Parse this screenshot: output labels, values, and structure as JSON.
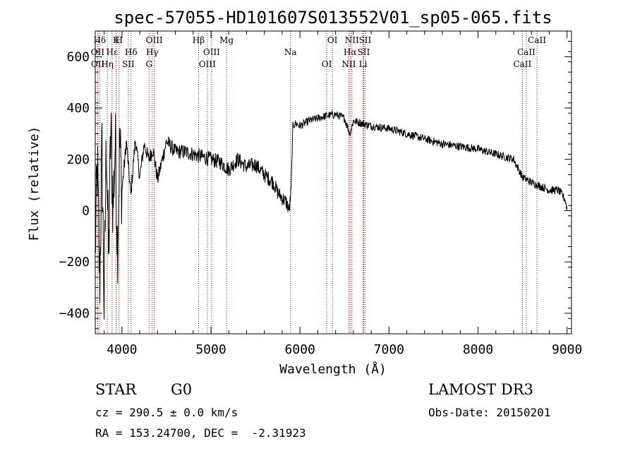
{
  "chart_data": {
    "type": "line",
    "title": "spec-57055-HD101607S013552V01_sp05-065.fits",
    "xlabel": "Wavelength (Å)",
    "ylabel": "Flux (relative)",
    "xlim": [
      3700,
      9050
    ],
    "ylim": [
      -480,
      700
    ],
    "x_ticks": [
      4000,
      5000,
      6000,
      7000,
      8000,
      9000
    ],
    "y_ticks": [
      -400,
      -200,
      0,
      200,
      400,
      600
    ],
    "series": [
      {
        "name": "flux",
        "x": [
          3700,
          3725,
          3750,
          3775,
          3800,
          3825,
          3850,
          3875,
          3900,
          3925,
          3950,
          3975,
          4000,
          4050,
          4100,
          4150,
          4200,
          4250,
          4300,
          4350,
          4400,
          4500,
          4600,
          4700,
          4800,
          4900,
          5000,
          5100,
          5200,
          5300,
          5400,
          5500,
          5600,
          5700,
          5750,
          5800,
          5850,
          5880,
          5900,
          5920,
          5950,
          6000,
          6100,
          6200,
          6300,
          6400,
          6500,
          6560,
          6600,
          6700,
          6800,
          7000,
          7200,
          7400,
          7600,
          7800,
          8000,
          8200,
          8400,
          8500,
          8600,
          8700,
          8800,
          8900,
          8950,
          8980,
          9000
        ],
        "values": [
          -150,
          180,
          -300,
          250,
          -380,
          300,
          -200,
          330,
          0,
          280,
          -150,
          270,
          80,
          270,
          60,
          280,
          130,
          260,
          200,
          240,
          120,
          270,
          230,
          230,
          220,
          210,
          200,
          190,
          160,
          200,
          170,
          180,
          140,
          110,
          70,
          50,
          30,
          0,
          80,
          330,
          340,
          330,
          350,
          360,
          370,
          375,
          360,
          300,
          350,
          340,
          330,
          320,
          300,
          280,
          260,
          250,
          240,
          220,
          200,
          130,
          110,
          95,
          80,
          80,
          60,
          40,
          5
        ]
      }
    ],
    "spectral_lines": [
      {
        "label": "Hδ",
        "wavelength": 3750
      },
      {
        "label": "OII",
        "wavelength": 3727
      },
      {
        "label": "OII",
        "wavelength": 3729
      },
      {
        "label": "K",
        "wavelength": 3934
      },
      {
        "label": "Hε",
        "wavelength": 3889
      },
      {
        "label": "Hη",
        "wavelength": 3835
      },
      {
        "label": "H",
        "wavelength": 3968
      },
      {
        "label": "Hδ",
        "wavelength": 4102
      },
      {
        "label": "SII",
        "wavelength": 4072
      },
      {
        "label": "OIII",
        "wavelength": 4363
      },
      {
        "label": "Hγ",
        "wavelength": 4340
      },
      {
        "label": "G",
        "wavelength": 4305
      },
      {
        "label": "Hβ",
        "wavelength": 4861
      },
      {
        "label": "OIII",
        "wavelength": 5007
      },
      {
        "label": "OIII",
        "wavelength": 4959
      },
      {
        "label": "Mg",
        "wavelength": 5175
      },
      {
        "label": "Na",
        "wavelength": 5893
      },
      {
        "label": "OI",
        "wavelength": 6300
      },
      {
        "label": "OI",
        "wavelength": 6364
      },
      {
        "label": "Hα",
        "wavelength": 6563
      },
      {
        "label": "NII",
        "wavelength": 6548
      },
      {
        "label": "NII",
        "wavelength": 6583
      },
      {
        "label": "SII",
        "wavelength": 6716
      },
      {
        "label": "Li",
        "wavelength": 6708
      },
      {
        "label": "SII",
        "wavelength": 6731
      },
      {
        "label": "CaII",
        "wavelength": 8542
      },
      {
        "label": "CaII",
        "wavelength": 8498
      },
      {
        "label": "CaII",
        "wavelength": 8662
      }
    ]
  },
  "info": {
    "class": "STAR",
    "subclass": "G0",
    "survey": "LAMOST DR3",
    "cz": "cz = 290.5 ± 0.0 km/s",
    "obs_date": "Obs-Date: 20150201",
    "coords": "RA = 153.24700, DEC =  -2.31923"
  }
}
